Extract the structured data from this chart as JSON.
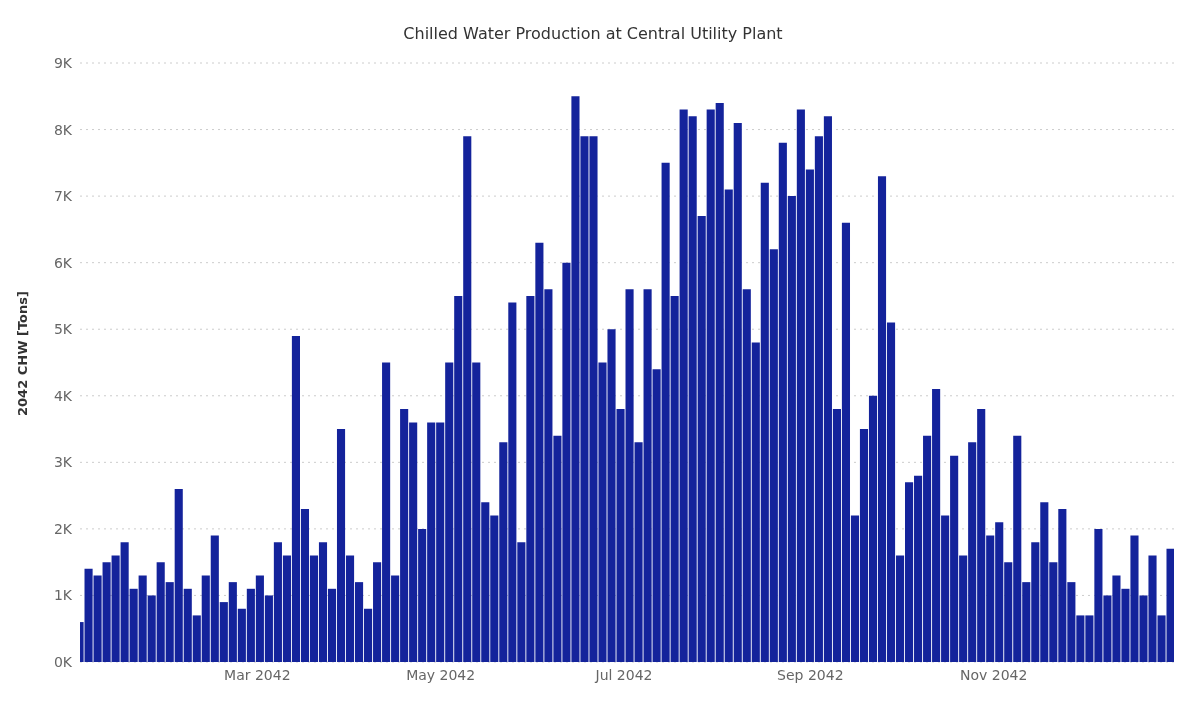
{
  "chart_data": {
    "type": "bar",
    "title": "Chilled Water Production at Central Utility Plant",
    "ylabel": "2042 CHW [Tons]",
    "x": [
      "2042-01-01",
      "2042-01-04",
      "2042-01-07",
      "2042-01-10",
      "2042-01-13",
      "2042-01-16",
      "2042-01-19",
      "2042-01-22",
      "2042-01-25",
      "2042-01-28",
      "2042-01-31",
      "2042-02-03",
      "2042-02-06",
      "2042-02-09",
      "2042-02-12",
      "2042-02-15",
      "2042-02-18",
      "2042-02-21",
      "2042-02-24",
      "2042-02-27",
      "2042-03-02",
      "2042-03-05",
      "2042-03-08",
      "2042-03-11",
      "2042-03-14",
      "2042-03-17",
      "2042-03-20",
      "2042-03-23",
      "2042-03-26",
      "2042-03-29",
      "2042-04-01",
      "2042-04-04",
      "2042-04-07",
      "2042-04-10",
      "2042-04-13",
      "2042-04-16",
      "2042-04-19",
      "2042-04-22",
      "2042-04-25",
      "2042-04-28",
      "2042-05-01",
      "2042-05-04",
      "2042-05-07",
      "2042-05-10",
      "2042-05-13",
      "2042-05-16",
      "2042-05-19",
      "2042-05-22",
      "2042-05-25",
      "2042-05-28",
      "2042-05-31",
      "2042-06-03",
      "2042-06-06",
      "2042-06-09",
      "2042-06-12",
      "2042-06-15",
      "2042-06-18",
      "2042-06-21",
      "2042-06-24",
      "2042-06-27",
      "2042-06-30",
      "2042-07-03",
      "2042-07-06",
      "2042-07-09",
      "2042-07-12",
      "2042-07-15",
      "2042-07-18",
      "2042-07-21",
      "2042-07-24",
      "2042-07-27",
      "2042-07-30",
      "2042-08-02",
      "2042-08-05",
      "2042-08-08",
      "2042-08-11",
      "2042-08-14",
      "2042-08-17",
      "2042-08-20",
      "2042-08-23",
      "2042-08-26",
      "2042-08-29",
      "2042-09-01",
      "2042-09-04",
      "2042-09-07",
      "2042-09-10",
      "2042-09-13",
      "2042-09-16",
      "2042-09-19",
      "2042-09-22",
      "2042-09-25",
      "2042-09-28",
      "2042-10-01",
      "2042-10-04",
      "2042-10-07",
      "2042-10-10",
      "2042-10-13",
      "2042-10-16",
      "2042-10-19",
      "2042-10-22",
      "2042-10-25",
      "2042-10-28",
      "2042-10-31",
      "2042-11-03",
      "2042-11-06",
      "2042-11-09",
      "2042-11-12",
      "2042-11-15",
      "2042-11-18",
      "2042-11-21",
      "2042-11-24",
      "2042-11-27",
      "2042-11-30",
      "2042-12-03",
      "2042-12-06",
      "2042-12-09",
      "2042-12-12",
      "2042-12-15",
      "2042-12-18",
      "2042-12-21",
      "2042-12-24",
      "2042-12-27",
      "2042-12-30"
    ],
    "values": [
      600,
      1400,
      1300,
      1500,
      1600,
      1800,
      1100,
      1300,
      1000,
      1500,
      1200,
      2600,
      1100,
      700,
      1300,
      1900,
      900,
      1200,
      800,
      1100,
      1300,
      1000,
      1800,
      1600,
      4900,
      2300,
      1600,
      1800,
      1100,
      3500,
      1600,
      1200,
      800,
      1500,
      4500,
      1300,
      3800,
      3600,
      2000,
      3600,
      3600,
      4500,
      5500,
      7900,
      4500,
      2400,
      2200,
      3300,
      5400,
      1800,
      5500,
      6300,
      5600,
      3400,
      6000,
      8500,
      7900,
      7900,
      4500,
      5000,
      3800,
      5600,
      3300,
      5600,
      4400,
      7500,
      5500,
      8300,
      8200,
      6700,
      8300,
      8400,
      7100,
      8100,
      5600,
      4800,
      7200,
      6200,
      7800,
      7000,
      8300,
      7400,
      7900,
      8200,
      3800,
      6600,
      2200,
      3500,
      4000,
      7300,
      5100,
      1600,
      2700,
      2800,
      3400,
      4100,
      2200,
      3100,
      1600,
      3300,
      3800,
      1900,
      2100,
      1500,
      3400,
      1200,
      1800,
      2400,
      1500,
      2300,
      1200,
      700,
      700,
      2000,
      1000,
      1300,
      1100,
      1900,
      1000,
      1600,
      700,
      1700
    ],
    "color": "#14239b",
    "xlim": [
      "2042-01-01",
      "2042-12-31"
    ],
    "xticks": [
      {
        "value": "2042-03-01",
        "label": "Mar 2042"
      },
      {
        "value": "2042-05-01",
        "label": "May 2042"
      },
      {
        "value": "2042-07-01",
        "label": "Jul 2042"
      },
      {
        "value": "2042-09-01",
        "label": "Sep 2042"
      },
      {
        "value": "2042-11-01",
        "label": "Nov 2042"
      }
    ],
    "ylim": [
      0,
      9000
    ],
    "yticks": [
      {
        "value": 0,
        "label": "0K"
      },
      {
        "value": 1000,
        "label": "1K"
      },
      {
        "value": 2000,
        "label": "2K"
      },
      {
        "value": 3000,
        "label": "3K"
      },
      {
        "value": 4000,
        "label": "4K"
      },
      {
        "value": 5000,
        "label": "5K"
      },
      {
        "value": 6000,
        "label": "6K"
      },
      {
        "value": 7000,
        "label": "7K"
      },
      {
        "value": 8000,
        "label": "8K"
      },
      {
        "value": 9000,
        "label": "9K"
      }
    ],
    "grid": "y"
  }
}
